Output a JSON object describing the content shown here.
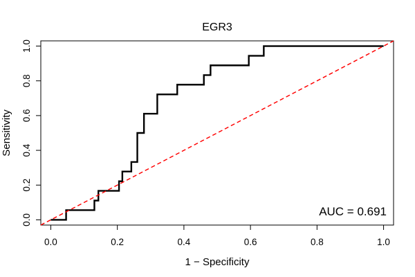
{
  "chart_data": {
    "type": "line",
    "title": "EGR3",
    "xlabel": "1 − Specificity",
    "ylabel": "Sensitivity",
    "xlim": [
      -0.03,
      1.03
    ],
    "ylim": [
      -0.03,
      1.03
    ],
    "x_ticks": [
      "0.0",
      "0.2",
      "0.4",
      "0.6",
      "0.8",
      "1.0"
    ],
    "y_ticks": [
      "0.0",
      "0.2",
      "0.4",
      "0.6",
      "0.8",
      "1.0"
    ],
    "grid": false,
    "annotation": "AUC = 0.691",
    "series": [
      {
        "color": "#000000",
        "style": "solid",
        "x": [
          0.0,
          0.046,
          0.046,
          0.131,
          0.131,
          0.143,
          0.143,
          0.205,
          0.205,
          0.215,
          0.215,
          0.242,
          0.242,
          0.26,
          0.26,
          0.28,
          0.28,
          0.29,
          0.29,
          0.32,
          0.32,
          0.38,
          0.38,
          0.46,
          0.46,
          0.48,
          0.48,
          0.595,
          0.595,
          0.64,
          0.64,
          1.0
        ],
        "y": [
          0.0,
          0.0,
          0.056,
          0.056,
          0.111,
          0.111,
          0.167,
          0.167,
          0.222,
          0.222,
          0.278,
          0.278,
          0.333,
          0.333,
          0.5,
          0.5,
          0.611,
          0.611,
          0.611,
          0.611,
          0.722,
          0.722,
          0.778,
          0.778,
          0.833,
          0.833,
          0.889,
          0.889,
          0.944,
          0.944,
          1.0,
          1.0
        ]
      },
      {
        "color": "#ff0000",
        "style": "dashed",
        "x": [
          -0.03,
          1.03
        ],
        "y": [
          -0.03,
          1.03
        ]
      }
    ]
  }
}
